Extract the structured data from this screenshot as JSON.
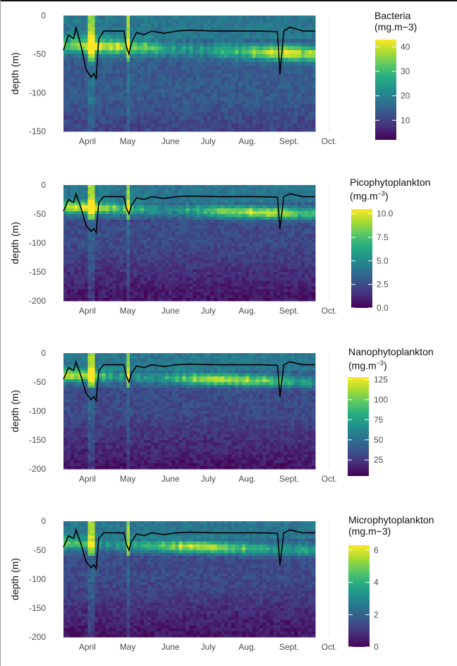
{
  "colors": {
    "viridis": [
      "#440154",
      "#472c7a",
      "#3b518b",
      "#2c718e",
      "#21908d",
      "#27ad81",
      "#5cc863",
      "#aadc32",
      "#fde725"
    ],
    "mld_line": "#000000",
    "grid": "#ebebeb"
  },
  "chart_data": [
    {
      "type": "heatmap",
      "title": "",
      "xlabel": "",
      "ylabel": "depth (m)",
      "x_ticks": [
        "April",
        "May",
        "June",
        "July",
        "Aug.",
        "Sept.",
        "Oct."
      ],
      "y_ticks": [
        0,
        -50,
        -100,
        -150
      ],
      "ylim": [
        -150,
        0
      ],
      "legend": {
        "title_line1": "Bacteria",
        "title_line2": "(mg.m−3)",
        "ticks": [
          40,
          30,
          20,
          10
        ],
        "range": [
          2,
          43
        ],
        "placement": "right"
      },
      "hotspot_peak": 43,
      "mixed_layer_depth_line": true
    },
    {
      "type": "heatmap",
      "title": "",
      "xlabel": "",
      "ylabel": "depth (m)",
      "x_ticks": [
        "April",
        "May",
        "June",
        "July",
        "Aug.",
        "Sept.",
        "Oct."
      ],
      "y_ticks": [
        0,
        -50,
        -100,
        -150,
        -200
      ],
      "ylim": [
        -200,
        0
      ],
      "legend": {
        "title_line1": "Picophytoplankton",
        "title_line2": "(mg.m",
        "title_sup": "−3",
        "title_close": ")",
        "ticks": [
          "10.0",
          "7.5",
          "5.0",
          "2.5",
          "0.0"
        ],
        "range": [
          0,
          10.5
        ],
        "placement": "right"
      },
      "hotspot_peak": 10.3,
      "mixed_layer_depth_line": true
    },
    {
      "type": "heatmap",
      "title": "",
      "xlabel": "",
      "ylabel": "depth (m)",
      "x_ticks": [
        "April",
        "May",
        "June",
        "July",
        "Aug.",
        "Sept.",
        "Oct."
      ],
      "y_ticks": [
        0,
        -50,
        -100,
        -150,
        -200
      ],
      "ylim": [
        -200,
        0
      ],
      "legend": {
        "title_line1": "Nanophytoplankton",
        "title_line2": "(mg.m",
        "title_sup": "−3",
        "title_close": ")",
        "ticks": [
          125,
          100,
          75,
          50,
          25
        ],
        "range": [
          5,
          128
        ],
        "placement": "right"
      },
      "hotspot_peak": 128,
      "mixed_layer_depth_line": true
    },
    {
      "type": "heatmap",
      "title": "",
      "xlabel": "",
      "ylabel": "depth (m)",
      "x_ticks": [
        "April",
        "May",
        "June",
        "July",
        "Aug.",
        "Sept.",
        "Oct."
      ],
      "y_ticks": [
        0,
        -50,
        -100,
        -150,
        -200
      ],
      "ylim": [
        -200,
        0
      ],
      "legend": {
        "title_line1": "Microphytoplankton",
        "title_line2": "(mg.m−3)",
        "ticks": [
          6,
          4,
          2,
          0
        ],
        "range": [
          0,
          6.3
        ],
        "placement": "right"
      },
      "hotspot_peak": 6.3,
      "mixed_layer_depth_line": true
    }
  ]
}
